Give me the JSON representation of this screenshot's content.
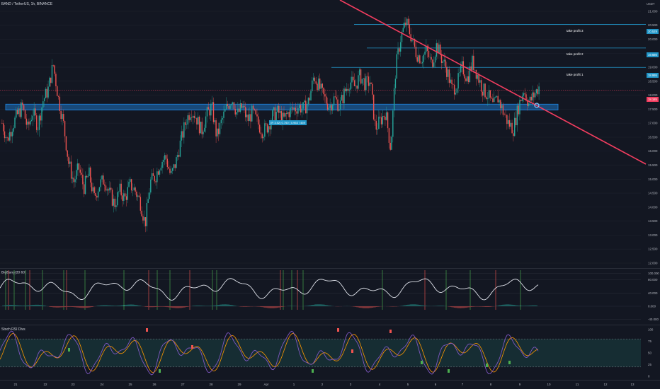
{
  "header": {
    "symbol_title": "BAND / TetherUS, 1h, BINANCE"
  },
  "price_axis": {
    "ticks": [
      "21.000",
      "20.500",
      "20.000",
      "19.500",
      "19.000",
      "18.500",
      "18.000",
      "17.500",
      "17.000",
      "16.500",
      "16.000",
      "15.500",
      "15.000",
      "14.500",
      "14.000",
      "13.500",
      "13.000",
      "12.500",
      "12.000"
    ],
    "top_label": "USDT"
  },
  "price_levels": {
    "tp3": {
      "label": "take profit 3",
      "value": "20.529"
    },
    "tp2": {
      "label": "take profit 2",
      "value": "19.686"
    },
    "tp1": {
      "label": "take profit 1",
      "value": "18.995"
    },
    "current": {
      "value": "18.185"
    },
    "zone_label": "(R 3.52) 0.750 | 0.963 / 469"
  },
  "oscillator": {
    "title": "BigBang(20 60)",
    "ticks": [
      "100.000",
      "80.000",
      "40.000",
      "0.000",
      "-40.000"
    ]
  },
  "stoch_rsi": {
    "title": "Stoch RSI Divs",
    "ticks": [
      "100",
      "75",
      "50",
      "25",
      "0"
    ]
  },
  "time_axis": {
    "labels": [
      "21",
      "22",
      "23",
      "24",
      "25",
      "26",
      "27",
      "28",
      "29",
      "Apr",
      "1",
      "2",
      "3",
      "4",
      "5",
      "6",
      "7",
      "8",
      "9",
      "10",
      "11",
      "12",
      "13"
    ]
  },
  "colors": {
    "background": "#131722",
    "up_candle": "#26a69a",
    "down_candle": "#ef5350",
    "trendline": "#f23d5f",
    "zone": "#1e88e5",
    "tp_line": "#2196c8",
    "rsi_k": "#7e57c2",
    "rsi_d": "#ff9800"
  },
  "chart_data": [
    {
      "type": "candlestick",
      "title": "BAND / TetherUS, 1h, BINANCE",
      "ylim": [
        12.0,
        21.2
      ],
      "x_labels": [
        "21",
        "22",
        "23",
        "24",
        "25",
        "26",
        "27",
        "28",
        "29",
        "Apr",
        "1",
        "2",
        "3",
        "4",
        "5",
        "6",
        "7",
        "8",
        "9",
        "10",
        "11",
        "12",
        "13"
      ],
      "close_path": [
        17.0,
        16.4,
        16.9,
        17.3,
        17.6,
        16.8,
        17.4,
        16.9,
        17.8,
        18.2,
        19.1,
        17.9,
        17.0,
        15.6,
        14.9,
        15.4,
        14.7,
        15.2,
        14.3,
        14.8,
        15.0,
        14.5,
        14.1,
        14.6,
        14.3,
        14.8,
        14.6,
        14.2,
        13.4,
        14.9,
        15.1,
        15.6,
        15.8,
        15.1,
        15.6,
        16.4,
        17.1,
        17.5,
        17.2,
        16.7,
        17.3,
        17.6,
        16.5,
        17.1,
        17.6,
        17.9,
        17.3,
        17.6,
        17.1,
        17.4,
        17.0,
        16.7,
        16.9,
        17.3,
        17.4,
        17.1,
        17.4,
        17.5,
        17.6,
        17.5,
        17.8,
        18.7,
        18.3,
        17.9,
        17.6,
        17.9,
        17.6,
        18.1,
        18.5,
        18.3,
        18.7,
        18.4,
        18.5,
        16.8,
        17.1,
        17.4,
        16.1,
        19.0,
        20.1,
        20.6,
        20.1,
        19.5,
        19.3,
        19.6,
        19.1,
        19.8,
        19.3,
        18.9,
        18.2,
        18.4,
        19.0,
        18.6,
        19.2,
        18.7,
        18.2,
        18.0,
        17.6,
        17.9,
        17.4,
        17.0,
        16.8,
        17.6,
        18.2,
        17.7,
        18.0,
        18.3
      ]
    },
    {
      "type": "line",
      "title": "BigBang(20 60)",
      "ylim": [
        -45,
        105
      ]
    },
    {
      "type": "line",
      "title": "Stoch RSI Divs",
      "ylim": [
        0,
        100
      ]
    }
  ]
}
